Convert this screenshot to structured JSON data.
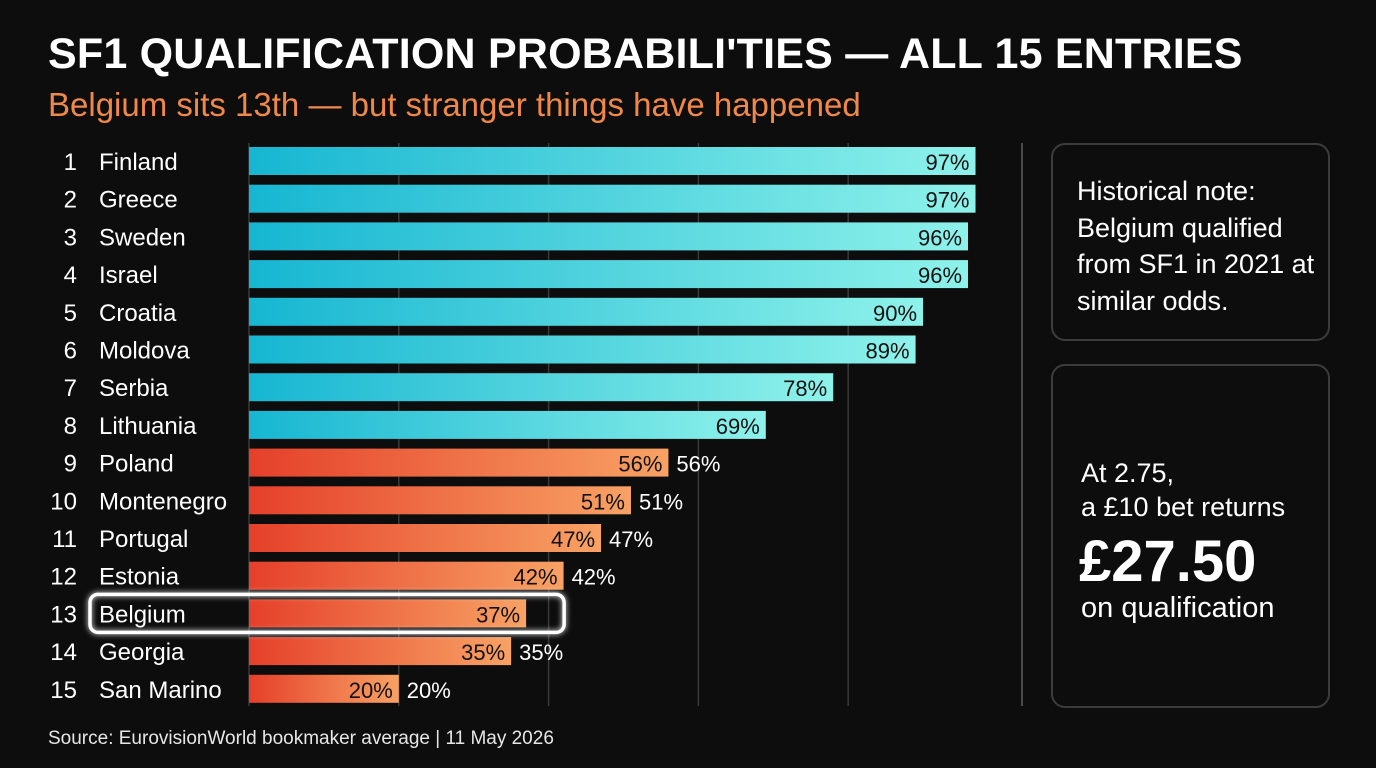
{
  "header": {
    "title": "SF1 QUALIFICATION PROBABILI'TIES — ALL 15 ENTRIES",
    "subtitle": "Belgium sits 13th — but stranger things have happened"
  },
  "notes": {
    "historical": "Historical note: Belgium qualified from SF1 in 2021 at similar odds."
  },
  "bet": {
    "line1": "At 2.75,",
    "line2": "a £10 bet returns",
    "amount": "£27.50",
    "line3": "on qualification"
  },
  "footer": {
    "source": "Source: EurovisionWorld bookmaker average | 11 May 2026"
  },
  "chart_data": {
    "type": "bar",
    "orientation": "horizontal",
    "ranks": [
      "1",
      "2",
      "3",
      "4",
      "5",
      "6",
      "7",
      "8",
      "9",
      "10",
      "11",
      "12",
      "13",
      "14",
      "15"
    ],
    "categories": [
      "Finland",
      "Greece",
      "Sweden",
      "Israel",
      "Croatia",
      "Moldova",
      "Serbia",
      "Lithuania",
      "Poland",
      "Montenegro",
      "Portugal",
      "Estonia",
      "Belgium",
      "Georgia",
      "San Marino"
    ],
    "values": [
      97,
      97,
      96,
      96,
      90,
      89,
      78,
      69,
      56,
      51,
      47,
      42,
      37,
      35,
      20
    ],
    "value_labels": [
      "97%",
      "97%",
      "96%",
      "96%",
      "90%",
      "89%",
      "78%",
      "69%",
      "56%",
      "51%",
      "47%",
      "42%",
      "37%",
      "35%",
      "20%"
    ],
    "outside_labels": [
      "",
      "",
      "",
      "",
      "",
      "",
      "",
      "",
      "56%",
      "51%",
      "47%",
      "42%",
      "",
      "35%",
      "20%"
    ],
    "highlight": "Belgium",
    "xlim": [
      0,
      98
    ],
    "grid": true,
    "colors": {
      "top_start": "#16b6d2",
      "top_end": "#8ef2ea",
      "bottom_start": "#e5402a",
      "bottom_end": "#f8a264",
      "highlight_border": "#ffffff"
    }
  }
}
